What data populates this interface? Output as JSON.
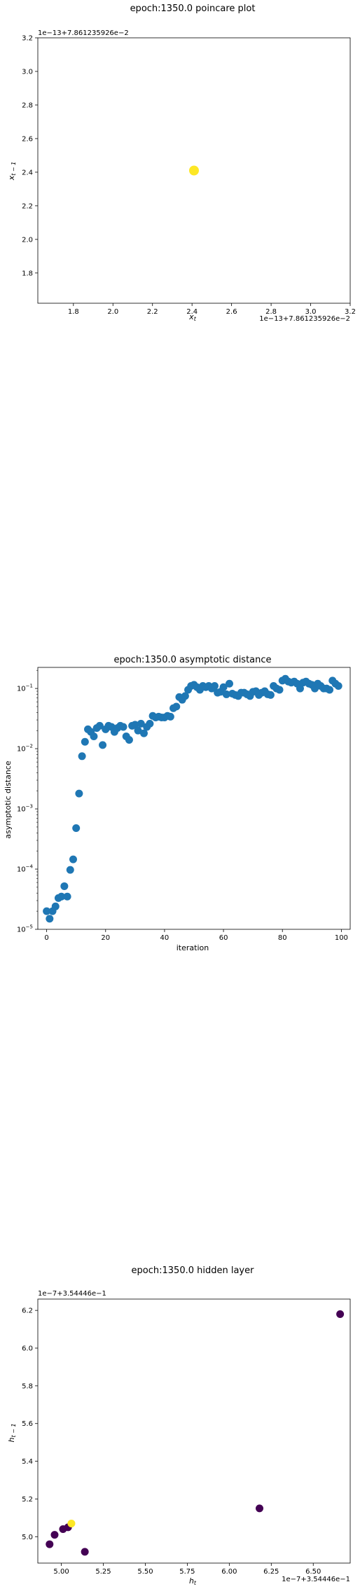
{
  "chart_data": [
    {
      "type": "scatter",
      "title": "epoch:1350.0 poincare plot",
      "xlabel": "x_t",
      "ylabel": "x_{t-1}",
      "x_offset_label": "1e−13+7.861235926e−2",
      "y_offset_label": "1e−13+7.861235926e−2",
      "xlim": [
        1.62,
        3.2
      ],
      "ylim": [
        1.62,
        3.2
      ],
      "xticks": [
        1.8,
        2.0,
        2.2,
        2.4,
        2.6,
        2.8,
        3.0,
        3.2
      ],
      "yticks": [
        1.8,
        2.0,
        2.2,
        2.4,
        2.6,
        2.8,
        3.0,
        3.2
      ],
      "points": [
        {
          "x": 2.41,
          "y": 2.41,
          "color": "#fde725"
        }
      ]
    },
    {
      "type": "scatter",
      "title": "epoch:1350.0 asymptotic distance",
      "xlabel": "iteration",
      "ylabel": "asymptotic distance",
      "yscale": "log",
      "xlim": [
        -3,
        103
      ],
      "ylim_exp": [
        -5,
        -0.65
      ],
      "xticks": [
        0,
        20,
        40,
        60,
        80,
        100
      ],
      "yticks_exp": [
        -5,
        -4,
        -3,
        -2,
        -1
      ],
      "color": "#1f77b4",
      "x": [
        0,
        1,
        2,
        3,
        4,
        5,
        6,
        7,
        8,
        9,
        10,
        11,
        12,
        13,
        14,
        15,
        16,
        17,
        18,
        19,
        20,
        21,
        22,
        23,
        24,
        25,
        26,
        27,
        28,
        29,
        30,
        31,
        32,
        33,
        34,
        35,
        36,
        37,
        38,
        39,
        40,
        41,
        42,
        43,
        44,
        45,
        46,
        47,
        48,
        49,
        50,
        51,
        52,
        53,
        54,
        55,
        56,
        57,
        58,
        59,
        60,
        61,
        62,
        63,
        64,
        65,
        66,
        67,
        68,
        69,
        70,
        71,
        72,
        73,
        74,
        75,
        76,
        77,
        78,
        79,
        80,
        81,
        82,
        83,
        84,
        85,
        86,
        87,
        88,
        89,
        90,
        91,
        92,
        93,
        94,
        95,
        96,
        97,
        98,
        99
      ],
      "y": [
        2e-05,
        1.5e-05,
        2e-05,
        2.4e-05,
        3.3e-05,
        3.5e-05,
        5.2e-05,
        3.5e-05,
        9.7e-05,
        0.000145,
        0.00048,
        0.0018,
        0.0075,
        0.013,
        0.021,
        0.019,
        0.016,
        0.022,
        0.024,
        0.0115,
        0.021,
        0.024,
        0.023,
        0.019,
        0.022,
        0.024,
        0.023,
        0.016,
        0.014,
        0.024,
        0.025,
        0.02,
        0.026,
        0.018,
        0.023,
        0.026,
        0.035,
        0.033,
        0.034,
        0.033,
        0.033,
        0.035,
        0.034,
        0.047,
        0.05,
        0.072,
        0.065,
        0.075,
        0.095,
        0.11,
        0.115,
        0.105,
        0.095,
        0.11,
        0.105,
        0.11,
        0.1,
        0.11,
        0.085,
        0.088,
        0.105,
        0.08,
        0.12,
        0.082,
        0.078,
        0.075,
        0.085,
        0.085,
        0.08,
        0.075,
        0.088,
        0.09,
        0.078,
        0.085,
        0.09,
        0.08,
        0.078,
        0.11,
        0.1,
        0.095,
        0.135,
        0.145,
        0.13,
        0.125,
        0.13,
        0.12,
        0.1,
        0.125,
        0.13,
        0.12,
        0.115,
        0.1,
        0.12,
        0.11,
        0.1,
        0.1,
        0.095,
        0.135,
        0.12,
        0.11
      ]
    },
    {
      "type": "scatter",
      "title": "epoch:1350.0 hidden layer",
      "xlabel": "h_t",
      "ylabel": "h_{t-1}",
      "x_offset_label": "1e−7+3.54446e−1",
      "y_offset_label": "1e−7+3.54446e−1",
      "xlim": [
        4.86,
        6.72
      ],
      "ylim": [
        4.86,
        6.26
      ],
      "xticks": [
        5.0,
        5.25,
        5.5,
        5.75,
        6.0,
        6.25,
        6.5
      ],
      "xtick_labels": [
        "5.00",
        "5.25",
        "5.50",
        "5.75",
        "6.00",
        "6.25",
        "6.50"
      ],
      "yticks": [
        5.0,
        5.2,
        5.4,
        5.6,
        5.8,
        6.0,
        6.2
      ],
      "points": [
        {
          "x": 6.66,
          "y": 6.18,
          "color": "#440154"
        },
        {
          "x": 6.18,
          "y": 5.15,
          "color": "#440154"
        },
        {
          "x": 4.93,
          "y": 4.96,
          "color": "#440154"
        },
        {
          "x": 4.96,
          "y": 5.01,
          "color": "#440154"
        },
        {
          "x": 5.01,
          "y": 5.04,
          "color": "#440154"
        },
        {
          "x": 5.04,
          "y": 5.05,
          "color": "#440154"
        },
        {
          "x": 5.14,
          "y": 4.92,
          "color": "#440154"
        },
        {
          "x": 5.06,
          "y": 5.07,
          "color": "#fde725"
        }
      ]
    }
  ]
}
